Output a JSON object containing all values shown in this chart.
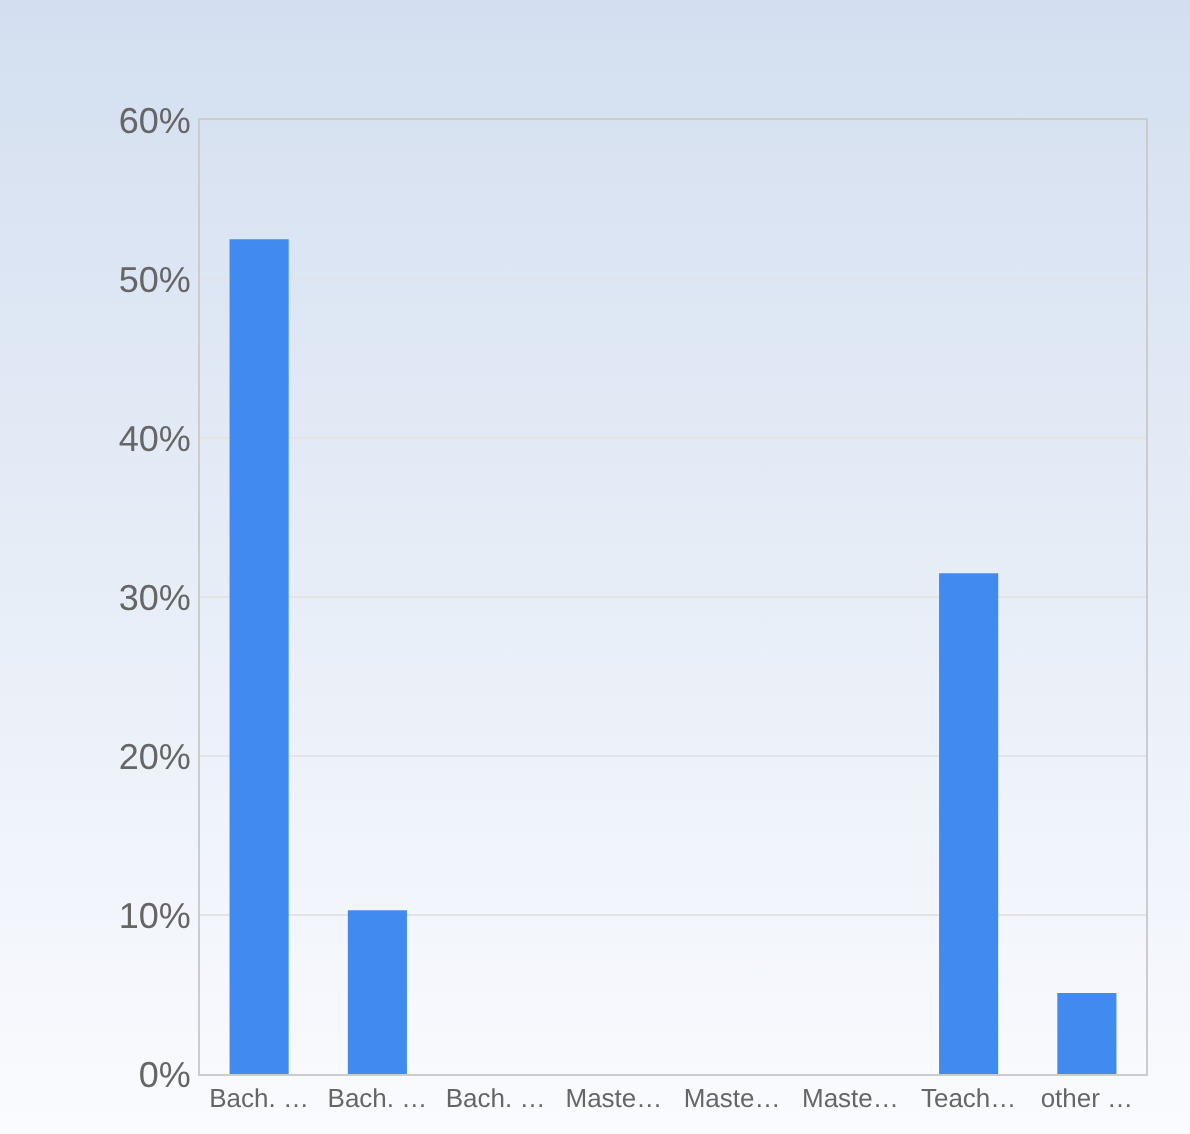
{
  "chart_data": {
    "type": "bar",
    "categories": [
      "Bach. …",
      "Bach. …",
      "Bach. …",
      "Maste…",
      "Maste…",
      "Maste…",
      "Teach…",
      "other …"
    ],
    "values": [
      52.5,
      10.3,
      0,
      0,
      0,
      0,
      31.5,
      5.1
    ],
    "color": "#418bf0",
    "ylim": [
      0,
      60
    ],
    "yticks": [
      {
        "value": 0,
        "label": "0%"
      },
      {
        "value": 10,
        "label": "10%"
      },
      {
        "value": 20,
        "label": "20%"
      },
      {
        "value": 30,
        "label": "30%"
      },
      {
        "value": 40,
        "label": "40%"
      },
      {
        "value": 50,
        "label": "50%"
      },
      {
        "value": 60,
        "label": "60%"
      }
    ],
    "grid": "y",
    "legend": false
  }
}
